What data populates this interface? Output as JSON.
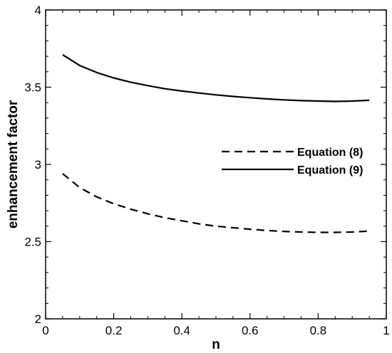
{
  "chart_data": {
    "type": "line",
    "title": "",
    "xlabel": "n",
    "ylabel": "enhancement factor",
    "xlim": [
      0,
      1
    ],
    "ylim": [
      2,
      4
    ],
    "xticks": [
      0,
      0.2,
      0.4,
      0.6,
      0.8,
      1
    ],
    "xtick_labels": [
      "0",
      "0.2",
      "0.4",
      "0.6",
      "0.8",
      "1"
    ],
    "yticks": [
      2,
      2.5,
      3,
      3.5,
      4
    ],
    "ytick_labels": [
      "2",
      "2.5",
      "3",
      "3.5",
      "4"
    ],
    "grid": false,
    "legend_position": "right",
    "series": [
      {
        "name": "Equation (8)",
        "style": "dashed",
        "color": "#000000",
        "x": [
          0.05,
          0.1,
          0.15,
          0.2,
          0.25,
          0.3,
          0.35,
          0.4,
          0.45,
          0.5,
          0.55,
          0.6,
          0.65,
          0.7,
          0.75,
          0.8,
          0.85,
          0.9,
          0.95
        ],
        "y": [
          2.94,
          2.85,
          2.79,
          2.745,
          2.71,
          2.68,
          2.655,
          2.635,
          2.615,
          2.6,
          2.59,
          2.58,
          2.572,
          2.566,
          2.562,
          2.56,
          2.56,
          2.562,
          2.568
        ]
      },
      {
        "name": "Equation (9)",
        "style": "solid",
        "color": "#000000",
        "x": [
          0.05,
          0.1,
          0.15,
          0.2,
          0.25,
          0.3,
          0.35,
          0.4,
          0.45,
          0.5,
          0.55,
          0.6,
          0.65,
          0.7,
          0.75,
          0.8,
          0.85,
          0.9,
          0.95
        ],
        "y": [
          3.71,
          3.64,
          3.595,
          3.56,
          3.532,
          3.51,
          3.49,
          3.475,
          3.462,
          3.45,
          3.44,
          3.432,
          3.424,
          3.418,
          3.413,
          3.41,
          3.408,
          3.41,
          3.415
        ]
      }
    ]
  }
}
